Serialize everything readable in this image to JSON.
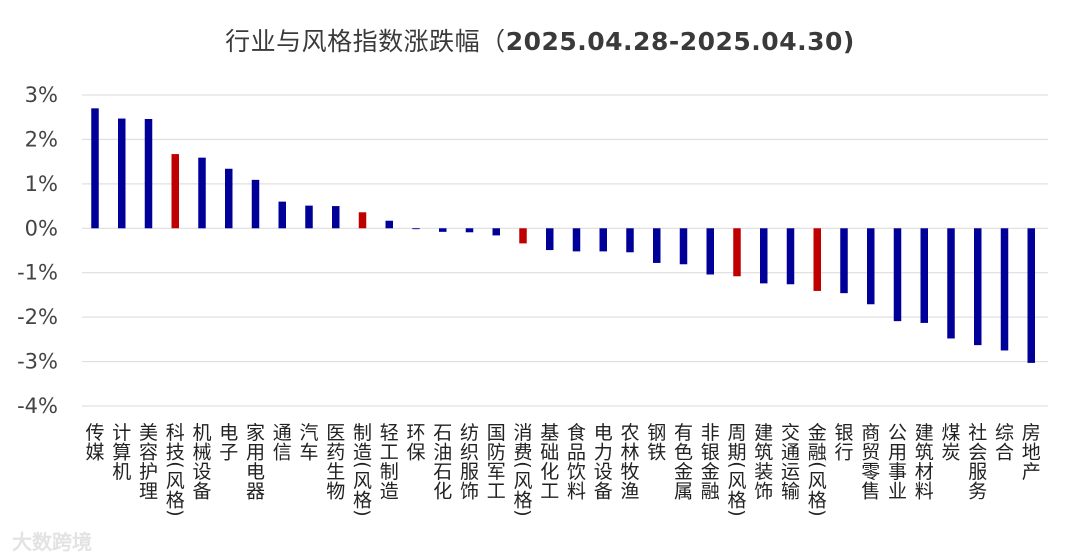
{
  "chart_data": {
    "type": "bar",
    "title": "行业与风格指数涨跌幅（",
    "title_dates": "2025.04.28-2025.04.30)",
    "ylim": [
      -4,
      3
    ],
    "yticks": [
      "-4%",
      "-3%",
      "-2%",
      "-1%",
      "0%",
      "1%",
      "2%",
      "3%"
    ],
    "grid": true,
    "colors": {
      "industry": "#000099",
      "style": "#c00000"
    },
    "categories": [
      "传媒",
      "计算机",
      "美容护理",
      "科技(风格)",
      "机械设备",
      "电子",
      "家用电器",
      "通信",
      "汽车",
      "医药生物",
      "制造(风格)",
      "轻工制造",
      "环保",
      "石油石化",
      "纺织服饰",
      "国防军工",
      "消费(风格)",
      "基础化工",
      "食品饮料",
      "电力设备",
      "农林牧渔",
      "钢铁",
      "有色金属",
      "非银金融",
      "周期(风格)",
      "建筑装饰",
      "交通运输",
      "金融(风格)",
      "银行",
      "商贸零售",
      "公用事业",
      "建筑材料",
      "煤炭",
      "社会服务",
      "综合",
      "房地产"
    ],
    "values": [
      2.7,
      2.47,
      2.46,
      1.67,
      1.59,
      1.34,
      1.09,
      0.6,
      0.51,
      0.5,
      0.36,
      0.17,
      -0.02,
      -0.08,
      -0.09,
      -0.16,
      -0.34,
      -0.49,
      -0.52,
      -0.52,
      -0.54,
      -0.78,
      -0.81,
      -1.04,
      -1.08,
      -1.24,
      -1.26,
      -1.41,
      -1.46,
      -1.71,
      -2.09,
      -2.13,
      -2.48,
      -2.63,
      -2.75,
      -3.03
    ],
    "style_flags": [
      false,
      false,
      false,
      true,
      false,
      false,
      false,
      false,
      false,
      false,
      true,
      false,
      false,
      false,
      false,
      false,
      true,
      false,
      false,
      false,
      false,
      false,
      false,
      false,
      true,
      false,
      false,
      true,
      false,
      false,
      false,
      false,
      false,
      false,
      false,
      false
    ]
  },
  "watermark": "大数跨境"
}
